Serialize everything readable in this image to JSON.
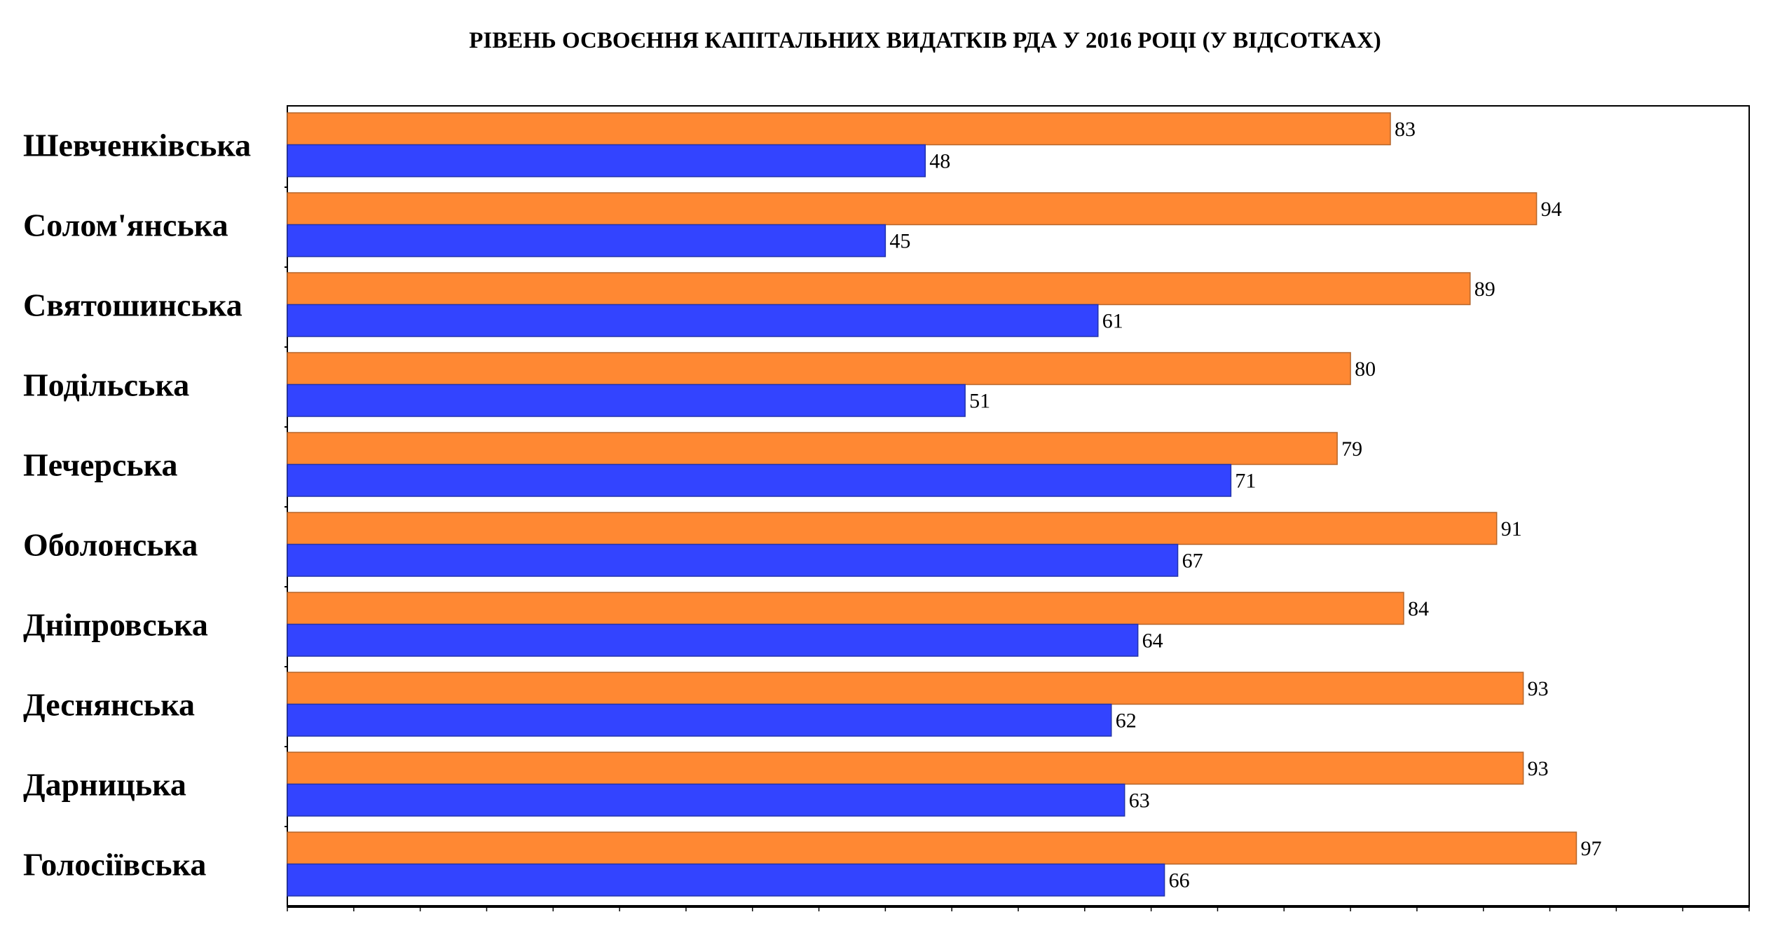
{
  "chart_data": {
    "type": "bar",
    "orientation": "horizontal",
    "title": "РІВЕНЬ ОСВОЄННЯ КАПІТАЛЬНИХ ВИДАТКІВ РДА У 2016 РОЦІ (У ВІДСОТКАХ)",
    "xlabel": "",
    "ylabel": "",
    "xlim": [
      0,
      110
    ],
    "tick_step": 5,
    "grid": false,
    "legend": "none",
    "categories": [
      "Шевченківська",
      "Солом'янська",
      "Святошинська",
      "Подільська",
      "Печерська",
      "Оболонська",
      "Дніпровська",
      "Деснянська",
      "Дарницька",
      "Голосіївська"
    ],
    "series": [
      {
        "name": "series-orange",
        "color": "#FF8833",
        "values": [
          83,
          94,
          89,
          80,
          79,
          91,
          84,
          93,
          93,
          97
        ]
      },
      {
        "name": "series-blue",
        "color": "#3344FF",
        "values": [
          48,
          45,
          61,
          51,
          71,
          67,
          64,
          62,
          63,
          66
        ]
      }
    ]
  }
}
